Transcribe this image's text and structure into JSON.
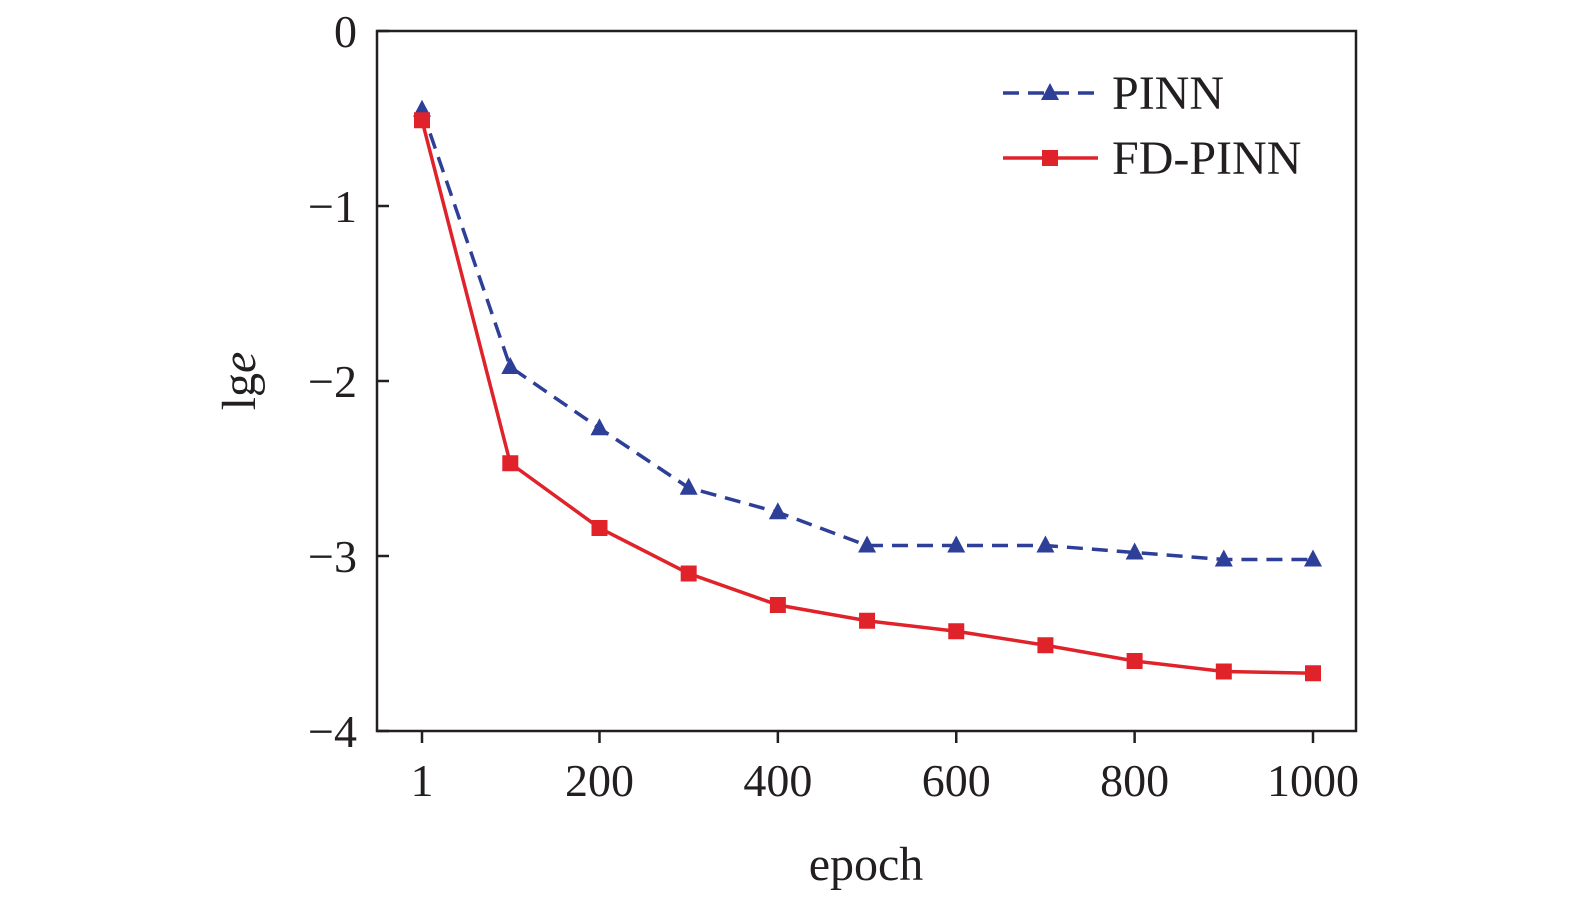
{
  "chart_data": {
    "type": "line",
    "xlabel": "epoch",
    "ylabel": "lg",
    "ylabel_italic": "e",
    "xlim": [
      1,
      1000
    ],
    "ylim": [
      -4,
      0
    ],
    "xticks": [
      1,
      200,
      400,
      600,
      800,
      1000
    ],
    "xtick_labels": [
      "1",
      "200",
      "400",
      "600",
      "800",
      "1000"
    ],
    "yticks": [
      0,
      -1,
      -2,
      -3,
      -4
    ],
    "ytick_labels": [
      "0",
      "−1",
      "−2",
      "−3",
      "−4"
    ],
    "grid": false,
    "legend_position": "top-right",
    "x": [
      1,
      100,
      200,
      300,
      400,
      500,
      600,
      700,
      800,
      900,
      1000
    ],
    "series": [
      {
        "name": "PINN",
        "color": "#2e3f97",
        "style": "dashed",
        "marker": "triangle",
        "values": [
          -0.45,
          -1.92,
          -2.27,
          -2.61,
          -2.75,
          -2.94,
          -2.94,
          -2.94,
          -2.98,
          -3.02,
          -3.02
        ]
      },
      {
        "name": "FD-PINN",
        "color": "#e0232b",
        "style": "solid",
        "marker": "square",
        "values": [
          -0.51,
          -2.47,
          -2.84,
          -3.1,
          -3.28,
          -3.37,
          -3.43,
          -3.51,
          -3.6,
          -3.66,
          -3.67
        ]
      }
    ]
  }
}
